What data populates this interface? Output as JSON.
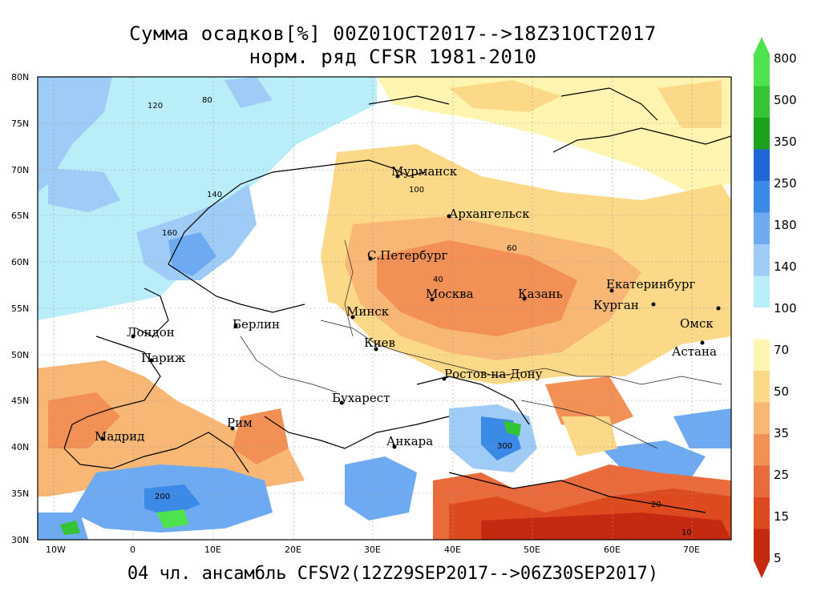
{
  "title_line1": "Сумма осадков[%] 00Z01OCT2017-->18Z31OCT2017",
  "title_line2": "норм. ряд CFSR 1981-2010",
  "footer": "04 чл. ансамбль CFSV2(12Z29SEP2017-->06Z30SEP2017)",
  "lat_labels": [
    "80N",
    "75N",
    "70N",
    "65N",
    "60N",
    "55N",
    "50N",
    "45N",
    "40N",
    "35N",
    "30N"
  ],
  "lon_labels": [
    "10W",
    "0",
    "10E",
    "20E",
    "30E",
    "40E",
    "50E",
    "60E",
    "70E"
  ],
  "colorbar": {
    "labels": [
      "800",
      "500",
      "350",
      "250",
      "180",
      "140",
      "100",
      "70",
      "50",
      "35",
      "25",
      "15",
      "5"
    ],
    "colors": [
      "#4fe24f",
      "#35c435",
      "#1da21d",
      "#1f67d6",
      "#3c8ae8",
      "#6eaaf2",
      "#9fcbf7",
      "#b9eef9",
      "#ffffff",
      "#fff5b0",
      "#fcd988",
      "#f8b774",
      "#f39056",
      "#e96a3a",
      "#de4a20",
      "#c42a10"
    ]
  },
  "cities": [
    {
      "name": "Мурманск"
    },
    {
      "name": "Архангельск"
    },
    {
      "name": "С.Петербург"
    },
    {
      "name": "Москва"
    },
    {
      "name": "Казань"
    },
    {
      "name": "Екатеринбург"
    },
    {
      "name": "Курган"
    },
    {
      "name": "Омск"
    },
    {
      "name": "Астана"
    },
    {
      "name": "Минск"
    },
    {
      "name": "Киев"
    },
    {
      "name": "Берлин"
    },
    {
      "name": "Лондон"
    },
    {
      "name": "Париж"
    },
    {
      "name": "Ростов-на-Дону"
    },
    {
      "name": "Бухарест"
    },
    {
      "name": "Рим"
    },
    {
      "name": "Мадрид"
    },
    {
      "name": "Анкара"
    }
  ],
  "contour_labels": [
    "120",
    "80",
    "100",
    "140",
    "60",
    "160",
    "40",
    "200",
    "300",
    "20",
    "10"
  ]
}
